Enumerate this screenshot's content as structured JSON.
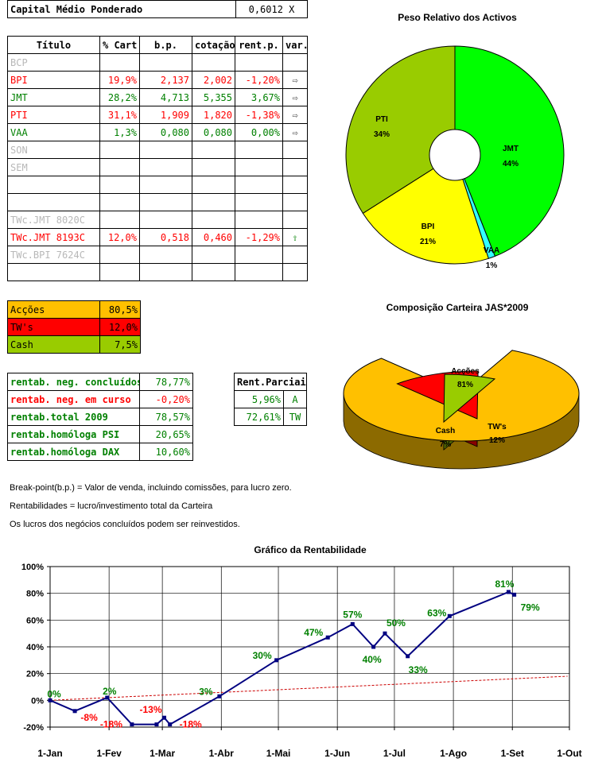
{
  "capital": {
    "label": "Capital Médio Ponderado",
    "value": "0,6012 X"
  },
  "portfolio": {
    "headers": [
      "Título",
      "% Cart",
      "b.p.",
      "cotação",
      "rent.p.",
      "var."
    ],
    "rows": [
      {
        "titulo": "BCP",
        "cart": "",
        "bp": "",
        "cot": "",
        "rent": "",
        "var": "",
        "color": "#b8b8b8"
      },
      {
        "titulo": "BPI",
        "cart": "19,9%",
        "bp": "2,137",
        "cot": "2,002",
        "rent": "-1,20%",
        "var": "⇨",
        "color": "#ff0000"
      },
      {
        "titulo": "JMT",
        "cart": "28,2%",
        "bp": "4,713",
        "cot": "5,355",
        "rent": "3,67%",
        "var": "⇨",
        "color": "#008000"
      },
      {
        "titulo": "PTI",
        "cart": "31,1%",
        "bp": "1,909",
        "cot": "1,820",
        "rent": "-1,38%",
        "var": "⇨",
        "color": "#ff0000"
      },
      {
        "titulo": "VAA",
        "cart": "1,3%",
        "bp": "0,080",
        "cot": "0,080",
        "rent": "0,00%",
        "var": "⇨",
        "color": "#008000"
      },
      {
        "titulo": "SON",
        "cart": "",
        "bp": "",
        "cot": "",
        "rent": "",
        "var": "",
        "color": "#b8b8b8"
      },
      {
        "titulo": "SEM",
        "cart": "",
        "bp": "",
        "cot": "",
        "rent": "",
        "var": "",
        "color": "#b8b8b8"
      },
      {
        "titulo": "",
        "cart": "",
        "bp": "",
        "cot": "",
        "rent": "",
        "var": "",
        "color": "#000"
      },
      {
        "titulo": "",
        "cart": "",
        "bp": "",
        "cot": "",
        "rent": "",
        "var": "",
        "color": "#000"
      },
      {
        "titulo": "TWc.JMT 8020C",
        "cart": "",
        "bp": "",
        "cot": "",
        "rent": "",
        "var": "",
        "color": "#b8b8b8"
      },
      {
        "titulo": "TWc.JMT 8193C",
        "cart": "12,0%",
        "bp": "0,518",
        "cot": "0,460",
        "rent": "-1,29%",
        "var": "⇧",
        "color": "#ff0000"
      },
      {
        "titulo": "TWc.BPI 7624C",
        "cart": "",
        "bp": "",
        "cot": "",
        "rent": "",
        "var": "",
        "color": "#b8b8b8"
      },
      {
        "titulo": "",
        "cart": "",
        "bp": "",
        "cot": "",
        "rent": "",
        "var": "",
        "color": "#000"
      }
    ]
  },
  "composition": [
    {
      "label": "Acções",
      "value": "80,5%",
      "bg": "#ffc000",
      "fg": "#000"
    },
    {
      "label": "TW's",
      "value": "12,0%",
      "bg": "#ff0000",
      "fg": "#000"
    },
    {
      "label": "Cash",
      "value": "7,5%",
      "bg": "#99cc00",
      "fg": "#000"
    }
  ],
  "returns": [
    {
      "label": "rentab. neg. concluídos",
      "value": "78,77%",
      "color": "#008000"
    },
    {
      "label": "rentab. neg. em curso",
      "value": "-0,20%",
      "color": "#ff0000"
    },
    {
      "label": "rentab.total 2009",
      "value": "78,57%",
      "color": "#008000"
    },
    {
      "label": "rentab.homóloga PSI",
      "value": "20,65%",
      "color": "#008000"
    },
    {
      "label": "rentab.homóloga DAX",
      "value": "10,60%",
      "color": "#008000"
    }
  ],
  "partials": {
    "header": "Rent.Parciais",
    "rows": [
      {
        "value": "5,96%",
        "tag": "A"
      },
      {
        "value": "72,61%",
        "tag": "TW"
      }
    ]
  },
  "notes": [
    "Break-point(b.p.) = Valor de venda, incluindo comissões, para lucro zero.",
    "Rentabilidades = lucro/investimento total da Carteira",
    "Os lucros dos negócios concluídos podem ser reinvestidos."
  ],
  "chart_data": [
    {
      "type": "pie",
      "title": "Peso Relativo dos Activos",
      "categories": [
        "JMT",
        "VAA",
        "BPI",
        "PTI"
      ],
      "values": [
        44,
        1,
        21,
        34
      ],
      "labels": [
        "44%",
        "1%",
        "21%",
        "34%"
      ],
      "colors": [
        "#00ff00",
        "#33ffff",
        "#ffff00",
        "#99cc00"
      ],
      "donut": true
    },
    {
      "type": "pie",
      "title": "Composição Carteira JAS*2009",
      "categories": [
        "Acções",
        "TW's",
        "Cash"
      ],
      "values": [
        81,
        12,
        7
      ],
      "labels": [
        "81%",
        "12%",
        "7%"
      ],
      "colors": [
        "#ffc000",
        "#ff0000",
        "#99cc00"
      ],
      "three_d": true
    },
    {
      "type": "line",
      "title": "Gráfico da Rentabilidade",
      "xlabel": "",
      "ylabel": "",
      "x_ticks": [
        "1-Jan",
        "1-Fev",
        "1-Mar",
        "1-Abr",
        "1-Mai",
        "1-Jun",
        "1-Jul",
        "1-Ago",
        "1-Set",
        "1-Out"
      ],
      "y_ticks": [
        "-20%",
        "0%",
        "20%",
        "40%",
        "60%",
        "80%",
        "100%"
      ],
      "ylim": [
        -20,
        100
      ],
      "grid": true,
      "series": [
        {
          "color": "#000080",
          "points": [
            {
              "x": "2009-01-01",
              "y": 0,
              "label": "0%"
            },
            {
              "x": "2009-01-14",
              "y": -8,
              "label": "-8%"
            },
            {
              "x": "2009-01-31",
              "y": 2,
              "label": "2%"
            },
            {
              "x": "2009-02-13",
              "y": -18,
              "label": "-18%"
            },
            {
              "x": "2009-02-26",
              "y": -18
            },
            {
              "x": "2009-03-02",
              "y": -13,
              "label": "-13%"
            },
            {
              "x": "2009-03-05",
              "y": -18,
              "label": "-18%"
            },
            {
              "x": "2009-03-31",
              "y": 3,
              "label": "3%"
            },
            {
              "x": "2009-04-30",
              "y": 30,
              "label": "30%"
            },
            {
              "x": "2009-05-27",
              "y": 47,
              "label": "47%"
            },
            {
              "x": "2009-06-09",
              "y": 57,
              "label": "57%"
            },
            {
              "x": "2009-06-20",
              "y": 40,
              "label": "40%"
            },
            {
              "x": "2009-06-26",
              "y": 50,
              "label": "50%"
            },
            {
              "x": "2009-07-08",
              "y": 33,
              "label": "33%"
            },
            {
              "x": "2009-07-30",
              "y": 63,
              "label": "63%"
            },
            {
              "x": "2009-08-30",
              "y": 81,
              "label": "81%"
            },
            {
              "x": "2009-09-02",
              "y": 79,
              "label": "79%"
            }
          ]
        },
        {
          "color": "#cc0000",
          "dashed": true,
          "points": [
            {
              "x": "2009-01-01",
              "y": 0
            },
            {
              "x": "2009-09-30",
              "y": 18
            }
          ]
        }
      ]
    }
  ]
}
